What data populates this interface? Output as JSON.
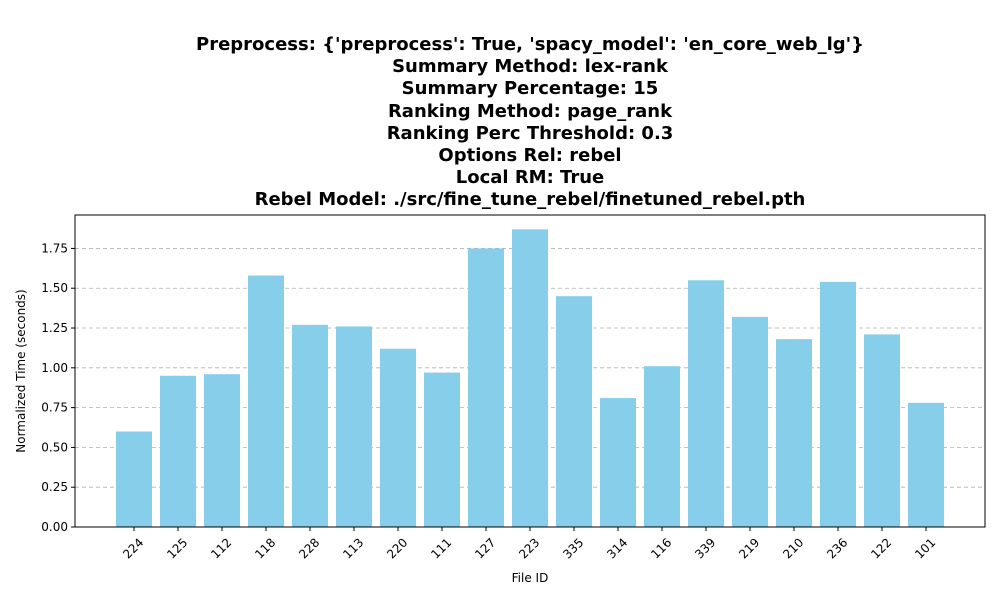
{
  "chart_data": {
    "type": "bar",
    "title_lines": [
      "Preprocess: {'preprocess': True, 'spacy_model': 'en_core_web_lg'}",
      "Summary Method: lex-rank",
      "Summary Percentage: 15",
      "Ranking Method: page_rank",
      "Ranking Perc Threshold: 0.3",
      "Options Rel: rebel",
      "Local RM: True",
      "Rebel Model: ./src/fine_tune_rebel/finetuned_rebel.pth"
    ],
    "categories": [
      "224",
      "125",
      "112",
      "118",
      "228",
      "113",
      "220",
      "111",
      "127",
      "223",
      "335",
      "314",
      "116",
      "339",
      "219",
      "210",
      "236",
      "122",
      "101"
    ],
    "values": [
      0.6,
      0.95,
      0.96,
      1.58,
      1.27,
      1.26,
      1.12,
      0.97,
      1.75,
      1.87,
      1.45,
      0.81,
      1.01,
      1.55,
      1.32,
      1.18,
      1.54,
      1.21,
      0.78
    ],
    "xlabel": "File ID",
    "ylabel": "Normalized Time (seconds)",
    "ylim": [
      0,
      1.96
    ],
    "yticks": [
      "0.00",
      "0.25",
      "0.50",
      "0.75",
      "1.00",
      "1.25",
      "1.50",
      "1.75"
    ],
    "grid": "y-dashed",
    "bar_color": "#87ceeb",
    "grid_color": "#b0b0b0"
  }
}
